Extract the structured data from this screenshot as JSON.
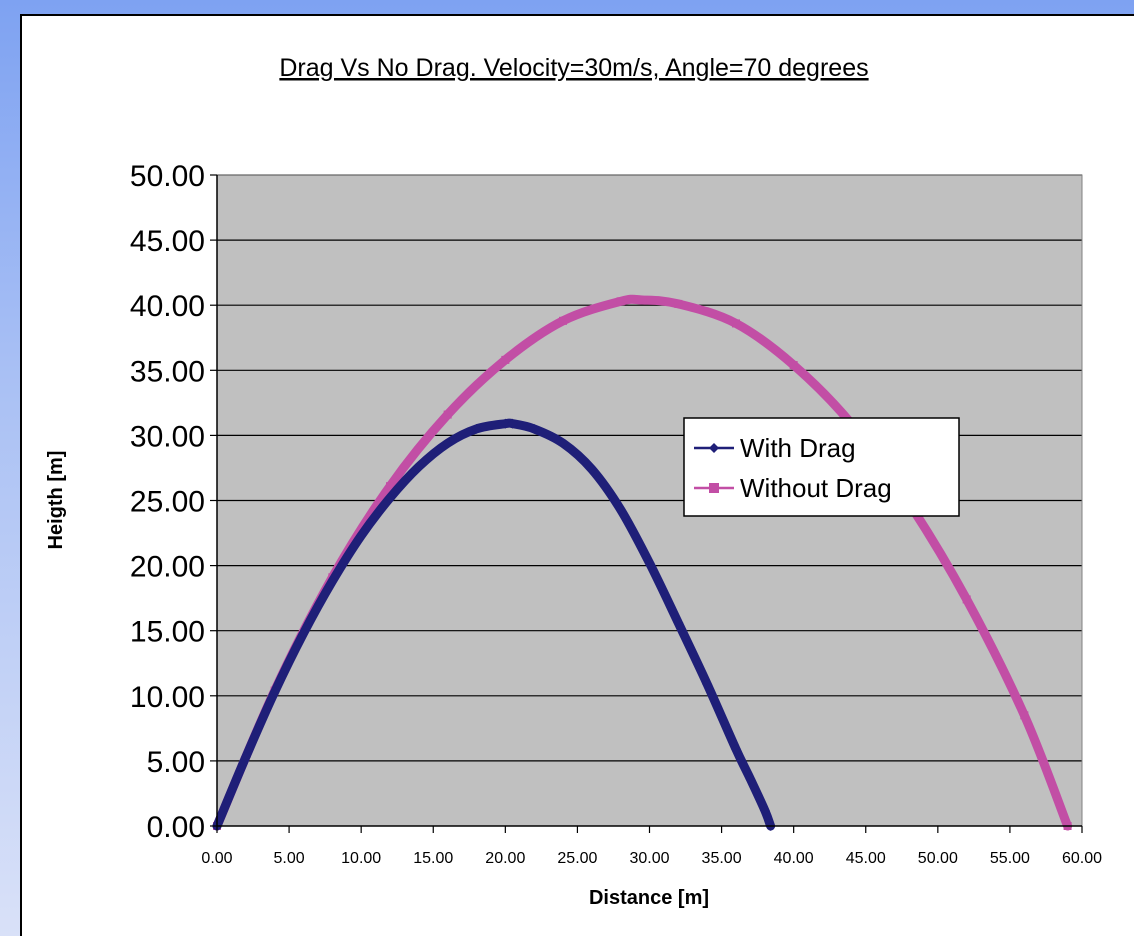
{
  "chart_data": {
    "type": "line",
    "title": "Drag Vs No Drag. Velocity=30m/s, Angle=70 degrees",
    "xlabel": "Distance [m]",
    "ylabel": "Heigth [m]",
    "xlim": [
      0,
      60
    ],
    "ylim": [
      0,
      50
    ],
    "x_ticks": [
      "0.00",
      "5.00",
      "10.00",
      "15.00",
      "20.00",
      "25.00",
      "30.00",
      "35.00",
      "40.00",
      "45.00",
      "50.00",
      "55.00",
      "60.00"
    ],
    "y_ticks": [
      "0.00",
      "5.00",
      "10.00",
      "15.00",
      "20.00",
      "25.00",
      "30.00",
      "35.00",
      "40.00",
      "45.00",
      "50.00"
    ],
    "grid": "horizontal",
    "legend_position": "right-middle",
    "plot_background": "#c0c0c0",
    "series": [
      {
        "name": "With Drag",
        "color": "#1f1f78",
        "marker": "diamond",
        "x": [
          0,
          2,
          4,
          6,
          8,
          10,
          12,
          14,
          16,
          18,
          20,
          20.5,
          22,
          24,
          26,
          28,
          30,
          32,
          34,
          36,
          37,
          38,
          38.4
        ],
        "y": [
          0,
          5.3,
          10.3,
          14.8,
          18.8,
          22.3,
          25.2,
          27.6,
          29.4,
          30.5,
          30.9,
          30.9,
          30.5,
          29.4,
          27.4,
          24.3,
          20.2,
          15.6,
          10.9,
          5.9,
          3.6,
          1.2,
          0
        ]
      },
      {
        "name": "Without Drag",
        "color": "#c24ea5",
        "marker": "square",
        "x": [
          0,
          4,
          8,
          12,
          16,
          20,
          24,
          28,
          29.5,
          32,
          36,
          40,
          44,
          48,
          52,
          56,
          59
        ],
        "y": [
          0,
          10.4,
          19.1,
          26.1,
          31.6,
          35.8,
          38.8,
          40.3,
          40.4,
          40.1,
          38.6,
          35.4,
          30.9,
          24.8,
          17.4,
          8.5,
          0
        ]
      }
    ]
  }
}
